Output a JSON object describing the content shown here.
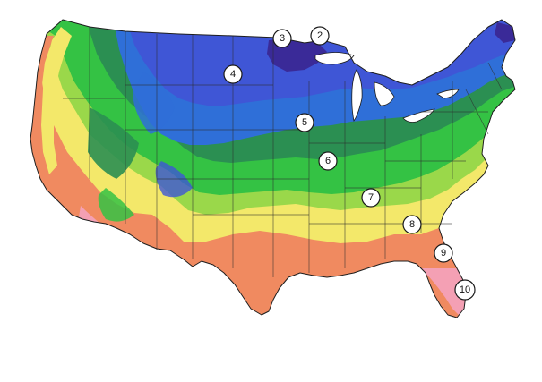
{
  "map": {
    "zone_colors": {
      "z2": "#3a2a98",
      "z3": "#3f56d6",
      "z4": "#2f6fd8",
      "z5": "#2b8f52",
      "z6": "#34c244",
      "z7": "#9ad84a",
      "z8": "#f3e86a",
      "z9": "#f08a60",
      "z10": "#f4a0b4"
    },
    "zone_badges": [
      {
        "id": "3",
        "label": "3"
      },
      {
        "id": "2",
        "label": "2"
      },
      {
        "id": "4",
        "label": "4"
      },
      {
        "id": "5",
        "label": "5"
      },
      {
        "id": "6",
        "label": "6"
      },
      {
        "id": "7",
        "label": "7"
      },
      {
        "id": "8",
        "label": "8"
      },
      {
        "id": "9",
        "label": "9"
      },
      {
        "id": "10",
        "label": "10"
      }
    ]
  }
}
